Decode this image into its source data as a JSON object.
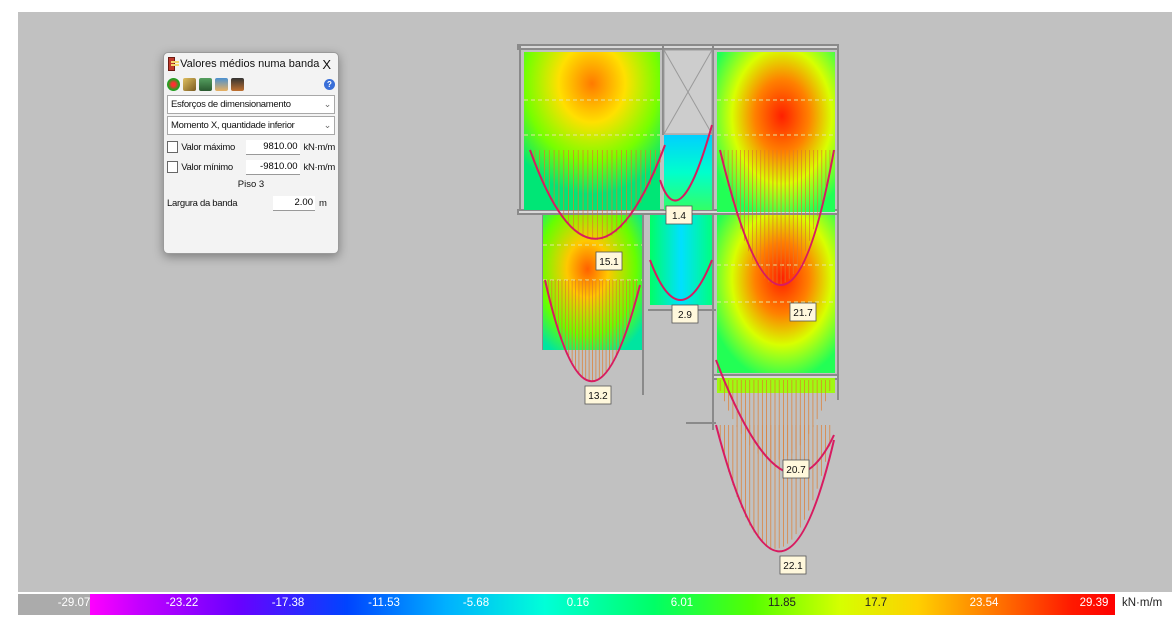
{
  "dialog": {
    "title": "Valores médios numa banda",
    "close_label": "X",
    "toolbar": {
      "icons": [
        "circle-color-icon",
        "ruler-icon",
        "structure-icon",
        "search-person-icon",
        "car-icon"
      ],
      "help_label": "?"
    },
    "result_type": "Esforços de dimensionamento",
    "quantity": "Momento X, quantidade inferior",
    "max_label": "Valor máximo",
    "max_value": "9810.00",
    "max_unit": "kN·m/m",
    "min_label": "Valor mínimo",
    "min_value": "-9810.00",
    "min_unit": "kN·m/m",
    "floor": "Piso 3",
    "band_label": "Largura da banda",
    "band_value": "2.00",
    "band_unit": "m"
  },
  "moment_labels": [
    "15.1",
    "1.4",
    "21.7",
    "2.9",
    "13.2",
    "20.7",
    "22.1"
  ],
  "legend": {
    "ticks": [
      "-29.07",
      "-23.22",
      "-17.38",
      "-11.53",
      "-5.68",
      "0.16",
      "6.01",
      "11.85",
      "17.7",
      "23.54",
      "29.39"
    ],
    "unit": "kN·m/m",
    "colors": [
      "#ababab",
      "#ff00ff",
      "#6a00ff",
      "#0044ff",
      "#00b0ff",
      "#00ffd8",
      "#00ff66",
      "#55ff00",
      "#d6ff00",
      "#ffd000",
      "#ff6a00",
      "#ff0000"
    ]
  }
}
